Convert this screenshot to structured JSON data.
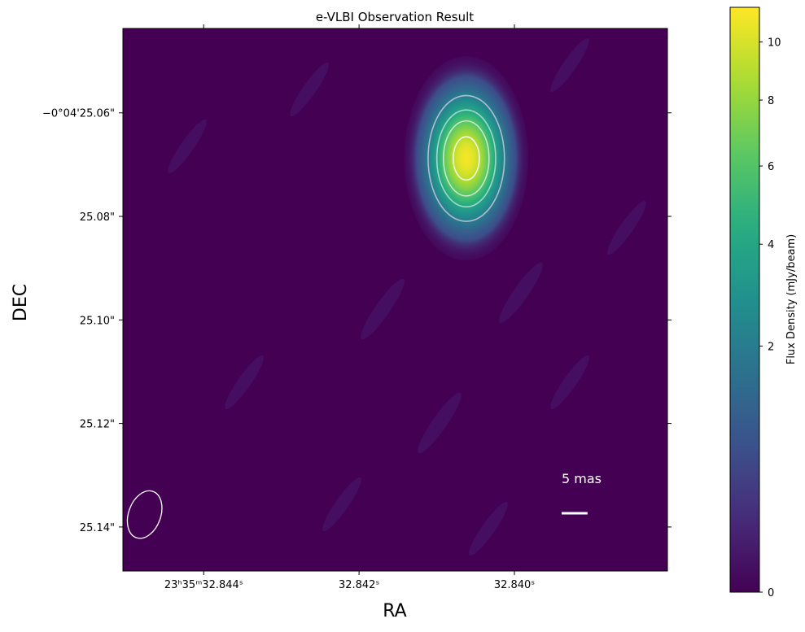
{
  "chart_data": {
    "type": "image",
    "title": "e-VLBI Observation Result",
    "x_label": "RA",
    "y_label": "DEC",
    "xlim": [
      32.84504,
      32.83803
    ],
    "xticks": [
      {
        "value": 32.844,
        "label": "23ʰ35ᵐ32.844ˢ"
      },
      {
        "value": 32.842,
        "label": "32.842ˢ"
      },
      {
        "value": 32.84,
        "label": "32.840ˢ"
      }
    ],
    "ylim": [
      25.0437,
      25.1485
    ],
    "yticks": [
      {
        "value": 25.06,
        "label": "−0°04'25.06\""
      },
      {
        "value": 25.08,
        "label": "25.08\""
      },
      {
        "value": 25.1,
        "label": "25.10\""
      },
      {
        "value": 25.12,
        "label": "25.12\""
      },
      {
        "value": 25.14,
        "label": "25.14\""
      }
    ],
    "source": {
      "ra": 32.84062,
      "dec": 25.0688,
      "peak": 11,
      "fwhm_mas": [
        9.4,
        15.5
      ]
    },
    "contour_levels": [
      2,
      4,
      6,
      9
    ],
    "beam": {
      "ra": 32.84476,
      "dec": 25.1376,
      "major_mas": 9.5,
      "minor_mas": 6.2,
      "angle": 20
    },
    "scale_bar": {
      "label": "5 mas",
      "length_mas": 5
    },
    "colorbar": {
      "label": "Flux Density (mJy/beam)",
      "lim": [
        0,
        11.3
      ],
      "ticks": [
        0,
        2,
        4,
        6,
        8,
        10
      ],
      "scale": "sqrt",
      "colormap": "viridis"
    }
  }
}
